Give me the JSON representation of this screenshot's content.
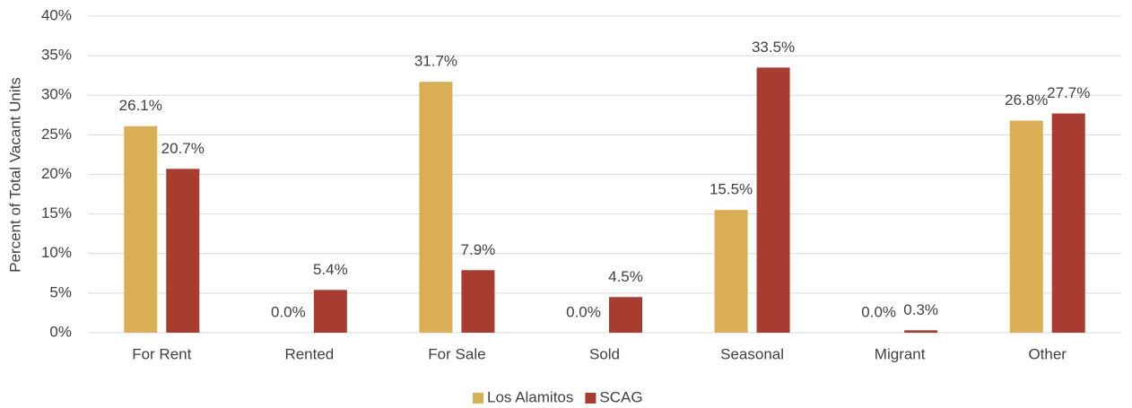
{
  "chart_data": {
    "type": "bar",
    "y_label": "Percent of Total Vacant Units",
    "categories": [
      "For Rent",
      "Rented",
      "For Sale",
      "Sold",
      "Seasonal",
      "Migrant",
      "Other"
    ],
    "series": [
      {
        "name": "Los Alamitos",
        "color": "#d9ae55",
        "values": [
          26.1,
          0.0,
          31.7,
          0.0,
          15.5,
          0.0,
          26.8
        ],
        "value_labels": [
          "26.1%",
          "0.0%",
          "31.7%",
          "0.0%",
          "15.5%",
          "0.0%",
          "26.8%"
        ]
      },
      {
        "name": "SCAG",
        "color": "#a93c30",
        "values": [
          20.7,
          5.4,
          7.9,
          4.5,
          33.5,
          0.3,
          27.7
        ],
        "value_labels": [
          "20.7%",
          "5.4%",
          "7.9%",
          "4.5%",
          "33.5%",
          "0.3%",
          "27.7%"
        ]
      }
    ],
    "ylim": [
      0,
      40
    ],
    "yticks": [
      {
        "value": 0,
        "label": "0%"
      },
      {
        "value": 5,
        "label": "5%"
      },
      {
        "value": 10,
        "label": "10%"
      },
      {
        "value": 15,
        "label": "15%"
      },
      {
        "value": 20,
        "label": "20%"
      },
      {
        "value": 25,
        "label": "25%"
      },
      {
        "value": 30,
        "label": "30%"
      },
      {
        "value": 35,
        "label": "35%"
      },
      {
        "value": 40,
        "label": "40%"
      }
    ],
    "grid": true,
    "legend": "bottom"
  }
}
